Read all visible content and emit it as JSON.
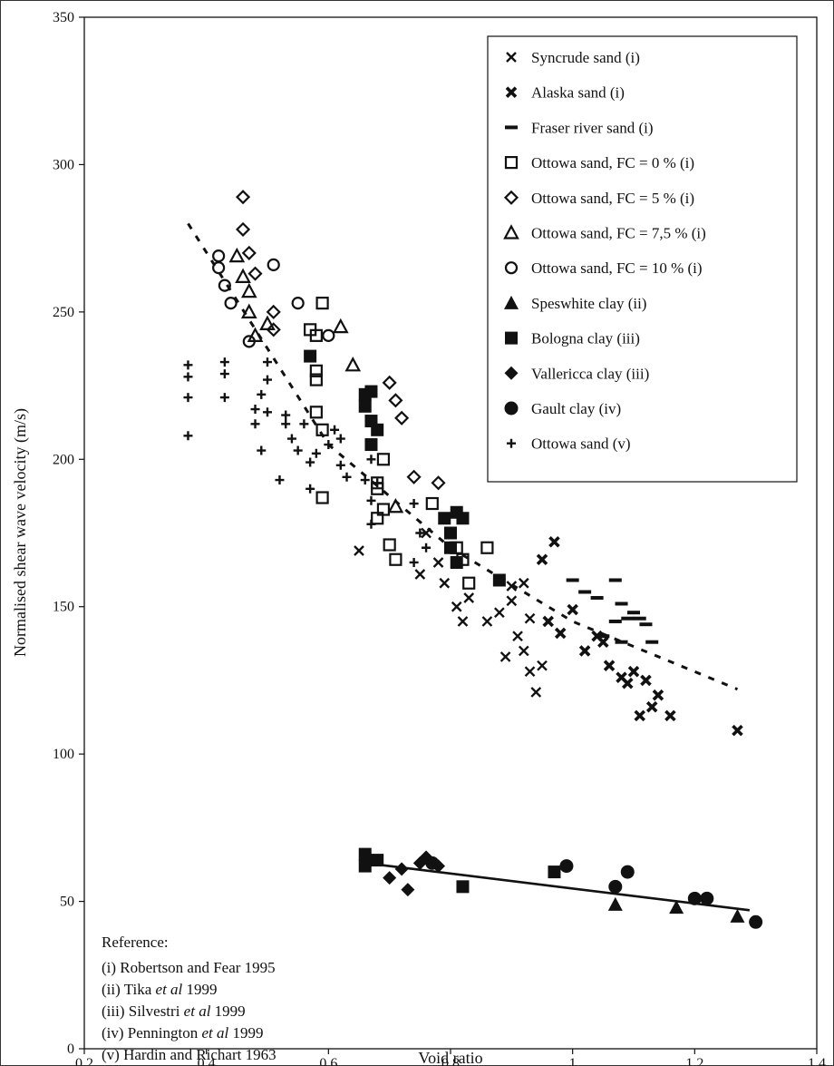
{
  "chart_data": {
    "type": "scatter",
    "xlabel": "Void ratio",
    "ylabel": "Normalised shear wave velocity (m/s)",
    "xlim": [
      0.2,
      1.4
    ],
    "ylim": [
      0,
      350
    ],
    "x_ticks": [
      "0,2",
      "0,4",
      "0,6",
      "0,8",
      "1",
      "1,2",
      "1,4"
    ],
    "y_ticks": [
      "0",
      "50",
      "100",
      "150",
      "200",
      "250",
      "300",
      "350"
    ],
    "legend_position": "top-right",
    "series": [
      {
        "name": "Syncrude sand (i)",
        "marker": "x",
        "points": [
          [
            0.65,
            169
          ],
          [
            0.75,
            161
          ],
          [
            0.76,
            175
          ],
          [
            0.78,
            165
          ],
          [
            0.79,
            158
          ],
          [
            0.81,
            150
          ],
          [
            0.82,
            145
          ],
          [
            0.83,
            153
          ],
          [
            0.86,
            145
          ],
          [
            0.88,
            148
          ],
          [
            0.89,
            133
          ],
          [
            0.9,
            152
          ],
          [
            0.91,
            140
          ],
          [
            0.92,
            135
          ],
          [
            0.93,
            128
          ],
          [
            0.94,
            121
          ],
          [
            0.9,
            157
          ],
          [
            0.93,
            146
          ],
          [
            0.95,
            130
          ],
          [
            0.92,
            158
          ]
        ]
      },
      {
        "name": "Alaska sand (i)",
        "marker": "xx",
        "points": [
          [
            0.95,
            166
          ],
          [
            0.97,
            172
          ],
          [
            1.0,
            149
          ],
          [
            1.02,
            135
          ],
          [
            1.05,
            138
          ],
          [
            1.06,
            130
          ],
          [
            1.08,
            126
          ],
          [
            1.09,
            124
          ],
          [
            1.1,
            128
          ],
          [
            1.12,
            125
          ],
          [
            1.11,
            113
          ],
          [
            1.13,
            116
          ],
          [
            1.14,
            120
          ],
          [
            1.16,
            113
          ],
          [
            1.27,
            108
          ],
          [
            0.98,
            141
          ],
          [
            0.96,
            145
          ],
          [
            1.04,
            140
          ]
        ]
      },
      {
        "name": "Fraser river sand (i)",
        "marker": "dash",
        "points": [
          [
            1.0,
            159
          ],
          [
            1.02,
            155
          ],
          [
            1.04,
            153
          ],
          [
            1.07,
            159
          ],
          [
            1.08,
            151
          ],
          [
            1.1,
            148
          ],
          [
            1.09,
            146
          ],
          [
            1.11,
            146
          ],
          [
            1.12,
            144
          ],
          [
            1.07,
            145
          ],
          [
            1.13,
            138
          ],
          [
            1.05,
            140
          ],
          [
            1.08,
            138
          ]
        ]
      },
      {
        "name": "Ottowa sand, FC = 0 % (i)",
        "marker": "square-open",
        "points": [
          [
            0.57,
            244
          ],
          [
            0.58,
            242
          ],
          [
            0.58,
            230
          ],
          [
            0.58,
            227
          ],
          [
            0.59,
            253
          ],
          [
            0.58,
            216
          ],
          [
            0.59,
            210
          ],
          [
            0.59,
            187
          ],
          [
            0.69,
            200
          ],
          [
            0.69,
            183
          ],
          [
            0.7,
            171
          ],
          [
            0.71,
            166
          ],
          [
            0.68,
            190
          ],
          [
            0.68,
            180
          ],
          [
            0.81,
            170
          ],
          [
            0.82,
            166
          ],
          [
            0.86,
            170
          ],
          [
            0.83,
            158
          ],
          [
            0.68,
            192
          ],
          [
            0.77,
            185
          ]
        ]
      },
      {
        "name": "Ottowa sand, FC = 5 % (i)",
        "marker": "diamond-open",
        "points": [
          [
            0.46,
            289
          ],
          [
            0.46,
            278
          ],
          [
            0.47,
            270
          ],
          [
            0.48,
            263
          ],
          [
            0.51,
            250
          ],
          [
            0.51,
            244
          ],
          [
            0.7,
            226
          ],
          [
            0.71,
            220
          ],
          [
            0.72,
            214
          ],
          [
            0.74,
            194
          ],
          [
            0.78,
            192
          ]
        ]
      },
      {
        "name": "Ottowa sand, FC = 7,5 % (i)",
        "marker": "triangle-open",
        "points": [
          [
            0.45,
            269
          ],
          [
            0.46,
            262
          ],
          [
            0.47,
            257
          ],
          [
            0.47,
            250
          ],
          [
            0.48,
            242
          ],
          [
            0.5,
            246
          ],
          [
            0.62,
            245
          ],
          [
            0.64,
            232
          ],
          [
            0.71,
            184
          ]
        ]
      },
      {
        "name": "Ottowa sand, FC = 10 % (i)",
        "marker": "circle-open",
        "points": [
          [
            0.42,
            269
          ],
          [
            0.42,
            265
          ],
          [
            0.43,
            259
          ],
          [
            0.44,
            253
          ],
          [
            0.47,
            240
          ],
          [
            0.51,
            266
          ],
          [
            0.55,
            253
          ],
          [
            0.6,
            242
          ]
        ]
      },
      {
        "name": "Speswhite clay (ii)",
        "marker": "triangle-filled",
        "points": [
          [
            1.07,
            49
          ],
          [
            1.17,
            48
          ],
          [
            1.27,
            45
          ]
        ]
      },
      {
        "name": "Bologna clay (iii)",
        "marker": "square-filled",
        "points": [
          [
            0.57,
            235
          ],
          [
            0.66,
            222
          ],
          [
            0.67,
            223
          ],
          [
            0.66,
            218
          ],
          [
            0.67,
            213
          ],
          [
            0.68,
            210
          ],
          [
            0.67,
            205
          ],
          [
            0.79,
            180
          ],
          [
            0.8,
            175
          ],
          [
            0.81,
            182
          ],
          [
            0.82,
            180
          ],
          [
            0.8,
            170
          ],
          [
            0.81,
            165
          ],
          [
            0.88,
            159
          ],
          [
            0.66,
            62
          ],
          [
            0.66,
            66
          ],
          [
            0.68,
            64
          ],
          [
            0.82,
            55
          ],
          [
            0.97,
            60
          ]
        ]
      },
      {
        "name": "Vallericca clay (iii)",
        "marker": "diamond-filled",
        "points": [
          [
            0.7,
            58
          ],
          [
            0.72,
            61
          ],
          [
            0.73,
            54
          ],
          [
            0.75,
            63
          ],
          [
            0.76,
            65
          ],
          [
            0.78,
            62
          ]
        ]
      },
      {
        "name": "Gault clay (iv)",
        "marker": "circle-filled",
        "points": [
          [
            0.77,
            63
          ],
          [
            0.99,
            62
          ],
          [
            1.07,
            55
          ],
          [
            1.09,
            60
          ],
          [
            1.2,
            51
          ],
          [
            1.22,
            51
          ],
          [
            1.3,
            43
          ]
        ]
      },
      {
        "name": "Ottowa sand (v)",
        "marker": "plus",
        "points": [
          [
            0.37,
            232
          ],
          [
            0.37,
            228
          ],
          [
            0.37,
            221
          ],
          [
            0.37,
            208
          ],
          [
            0.43,
            233
          ],
          [
            0.43,
            229
          ],
          [
            0.43,
            221
          ],
          [
            0.48,
            217
          ],
          [
            0.48,
            212
          ],
          [
            0.49,
            203
          ],
          [
            0.49,
            222
          ],
          [
            0.5,
            233
          ],
          [
            0.5,
            227
          ],
          [
            0.5,
            216
          ],
          [
            0.53,
            215
          ],
          [
            0.53,
            212
          ],
          [
            0.54,
            207
          ],
          [
            0.55,
            203
          ],
          [
            0.52,
            193
          ],
          [
            0.57,
            199
          ],
          [
            0.57,
            190
          ],
          [
            0.58,
            202
          ],
          [
            0.6,
            205
          ],
          [
            0.61,
            210
          ],
          [
            0.62,
            207
          ],
          [
            0.62,
            198
          ],
          [
            0.63,
            194
          ],
          [
            0.56,
            212
          ],
          [
            0.67,
            200
          ],
          [
            0.68,
            192
          ],
          [
            0.67,
            186
          ],
          [
            0.67,
            178
          ],
          [
            0.74,
            185
          ],
          [
            0.75,
            175
          ],
          [
            0.74,
            165
          ],
          [
            0.76,
            170
          ],
          [
            0.66,
            193
          ]
        ]
      }
    ],
    "fit_lines": [
      {
        "style": "dashed",
        "points": [
          [
            0.37,
            280
          ],
          [
            0.6,
            205
          ],
          [
            0.8,
            170
          ],
          [
            1.0,
            145
          ],
          [
            1.27,
            122
          ]
        ]
      },
      {
        "style": "solid",
        "points": [
          [
            0.66,
            63
          ],
          [
            1.29,
            47
          ]
        ]
      }
    ],
    "reference": {
      "heading": "Reference:",
      "lines": [
        {
          "pre": "(i) Robertson and Fear 1995",
          "ital": "",
          "post": ""
        },
        {
          "pre": "(ii) Tika ",
          "ital": "et al",
          "post": " 1999"
        },
        {
          "pre": "(iii) Silvestri ",
          "ital": "et al",
          "post": " 1999"
        },
        {
          "pre": "(iv) Pennington ",
          "ital": "et al",
          "post": " 1999"
        },
        {
          "pre": "(v) Hardin and Richart 1963",
          "ital": "",
          "post": ""
        }
      ]
    }
  }
}
